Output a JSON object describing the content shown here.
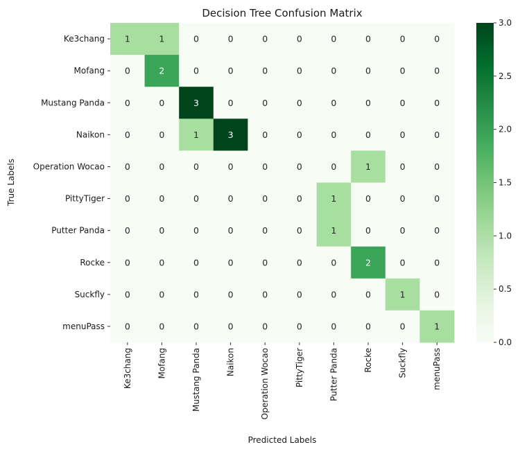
{
  "chart_data": {
    "type": "heatmap",
    "title": "Decision Tree Confusion Matrix",
    "xlabel": "Predicted Labels",
    "ylabel": "True Labels",
    "x_categories": [
      "Ke3chang",
      "Mofang",
      "Mustang Panda",
      "Naikon",
      "Operation Wocao",
      "PittyTiger",
      "Putter Panda",
      "Rocke",
      "Suckfly",
      "menuPass"
    ],
    "y_categories": [
      "Ke3chang",
      "Mofang",
      "Mustang Panda",
      "Naikon",
      "Operation Wocao",
      "PittyTiger",
      "Putter Panda",
      "Rocke",
      "Suckfly",
      "menuPass"
    ],
    "values": [
      [
        1,
        1,
        0,
        0,
        0,
        0,
        0,
        0,
        0,
        0
      ],
      [
        0,
        2,
        0,
        0,
        0,
        0,
        0,
        0,
        0,
        0
      ],
      [
        0,
        0,
        3,
        0,
        0,
        0,
        0,
        0,
        0,
        0
      ],
      [
        0,
        0,
        1,
        3,
        0,
        0,
        0,
        0,
        0,
        0
      ],
      [
        0,
        0,
        0,
        0,
        0,
        0,
        0,
        1,
        0,
        0
      ],
      [
        0,
        0,
        0,
        0,
        0,
        0,
        1,
        0,
        0,
        0
      ],
      [
        0,
        0,
        0,
        0,
        0,
        0,
        1,
        0,
        0,
        0
      ],
      [
        0,
        0,
        0,
        0,
        0,
        0,
        0,
        2,
        0,
        0
      ],
      [
        0,
        0,
        0,
        0,
        0,
        0,
        0,
        0,
        1,
        0
      ],
      [
        0,
        0,
        0,
        0,
        0,
        0,
        0,
        0,
        0,
        1
      ]
    ],
    "colorbar": {
      "range": [
        0.0,
        3.0
      ],
      "ticks": [
        "0.0",
        "0.5",
        "1.0",
        "1.5",
        "2.0",
        "2.5",
        "3.0"
      ],
      "colormap": "Greens"
    },
    "colors": {
      "zero": "#f7fcf5",
      "one": "#a8dea0",
      "two": "#3aa457",
      "three": "#00441b"
    }
  }
}
